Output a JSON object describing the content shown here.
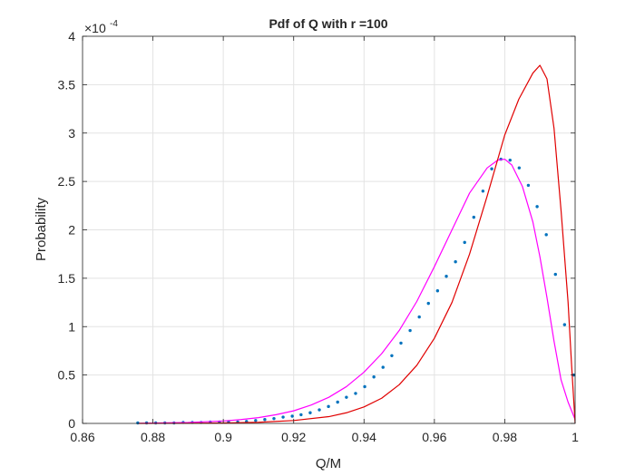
{
  "chart_data": {
    "type": "line",
    "title": "Pdf of Q with r =100",
    "xlabel": "Q/M",
    "ylabel": "Probability",
    "exponent_label": "×10",
    "exponent_power": "-4",
    "xlim": [
      0.86,
      1.0
    ],
    "ylim": [
      0,
      4
    ],
    "grid": true,
    "x_ticks": [
      0.86,
      0.88,
      0.9,
      0.92,
      0.94,
      0.96,
      0.98,
      1.0
    ],
    "x_tick_labels": [
      "0.86",
      "0.88",
      "0.9",
      "0.92",
      "0.94",
      "0.96",
      "0.98",
      "1"
    ],
    "y_ticks": [
      0,
      0.5,
      1,
      1.5,
      2,
      2.5,
      3,
      3.5,
      4
    ],
    "y_tick_labels": [
      "0",
      "0.5",
      "1",
      "1.5",
      "2",
      "2.5",
      "3",
      "3.5",
      "4"
    ],
    "series": [
      {
        "style": "dots",
        "color": "#0072BD",
        "x": [
          0.8757,
          0.8782,
          0.8808,
          0.8834,
          0.886,
          0.8886,
          0.8912,
          0.8937,
          0.8963,
          0.8989,
          0.9015,
          0.9041,
          0.9066,
          0.9092,
          0.9118,
          0.9144,
          0.917,
          0.9196,
          0.9221,
          0.9247,
          0.9273,
          0.9299,
          0.9325,
          0.935,
          0.9376,
          0.9402,
          0.9428,
          0.9454,
          0.9479,
          0.9505,
          0.9531,
          0.9557,
          0.9583,
          0.9609,
          0.9634,
          0.966,
          0.9686,
          0.9712,
          0.9738,
          0.9763,
          0.9789,
          0.9815,
          0.9841,
          0.9867,
          0.9892,
          0.9918,
          0.9944,
          0.997,
          0.9996
        ],
        "values": [
          0.005,
          0.005,
          0.005,
          0.005,
          0.005,
          0.01,
          0.01,
          0.01,
          0.015,
          0.015,
          0.015,
          0.015,
          0.02,
          0.03,
          0.04,
          0.05,
          0.065,
          0.075,
          0.09,
          0.11,
          0.14,
          0.175,
          0.22,
          0.27,
          0.31,
          0.38,
          0.48,
          0.58,
          0.7,
          0.83,
          0.96,
          1.1,
          1.24,
          1.37,
          1.52,
          1.67,
          1.87,
          2.13,
          2.4,
          2.63,
          2.73,
          2.72,
          2.64,
          2.46,
          2.24,
          1.95,
          1.54,
          1.02,
          0.5
        ]
      },
      {
        "style": "line",
        "color": "#FF00FF",
        "x": [
          0.876,
          0.88,
          0.89,
          0.9,
          0.905,
          0.91,
          0.915,
          0.92,
          0.925,
          0.93,
          0.935,
          0.94,
          0.945,
          0.95,
          0.955,
          0.96,
          0.965,
          0.97,
          0.975,
          0.978,
          0.98,
          0.982,
          0.985,
          0.988,
          0.99,
          0.992,
          0.994,
          0.996,
          0.998,
          1.0
        ],
        "values": [
          0.002,
          0.004,
          0.01,
          0.025,
          0.04,
          0.06,
          0.09,
          0.13,
          0.19,
          0.27,
          0.38,
          0.53,
          0.72,
          0.96,
          1.26,
          1.62,
          2.0,
          2.38,
          2.64,
          2.72,
          2.73,
          2.67,
          2.45,
          2.08,
          1.72,
          1.3,
          0.85,
          0.45,
          0.22,
          0.04
        ]
      },
      {
        "style": "line",
        "color": "#E00000",
        "x": [
          0.876,
          0.89,
          0.9,
          0.91,
          0.92,
          0.93,
          0.935,
          0.94,
          0.945,
          0.95,
          0.955,
          0.96,
          0.965,
          0.97,
          0.975,
          0.98,
          0.984,
          0.988,
          0.99,
          0.992,
          0.994,
          0.996,
          0.998,
          0.999,
          1.0
        ],
        "values": [
          0.0,
          0.002,
          0.005,
          0.012,
          0.03,
          0.07,
          0.11,
          0.17,
          0.26,
          0.4,
          0.6,
          0.88,
          1.25,
          1.75,
          2.35,
          2.98,
          3.35,
          3.62,
          3.7,
          3.56,
          3.05,
          2.2,
          1.25,
          0.6,
          0.0
        ]
      }
    ]
  }
}
